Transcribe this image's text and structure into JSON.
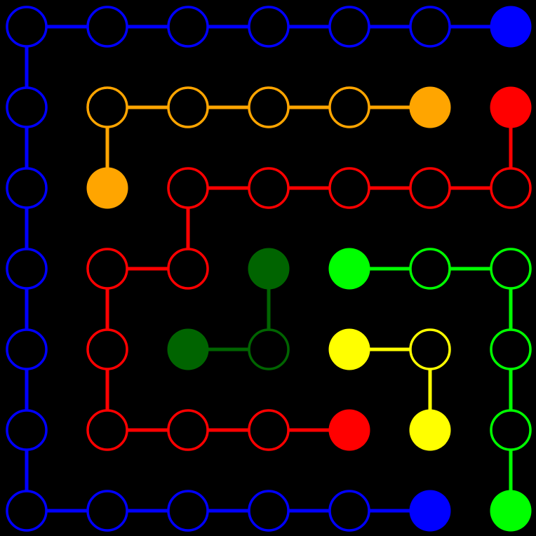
{
  "puzzle": {
    "grid_size": [
      7,
      7
    ],
    "colors": {
      "blue": "#0000ff",
      "orange": "#ffa500",
      "red": "#ff0000",
      "darkgreen": "#006400",
      "lime": "#00ff00",
      "yellow": "#ffff00"
    },
    "flows": [
      {
        "color": "blue",
        "path": [
          [
            6,
            0
          ],
          [
            5,
            0
          ],
          [
            4,
            0
          ],
          [
            3,
            0
          ],
          [
            2,
            0
          ],
          [
            1,
            0
          ],
          [
            0,
            0
          ],
          [
            0,
            1
          ],
          [
            0,
            2
          ],
          [
            0,
            3
          ],
          [
            0,
            4
          ],
          [
            0,
            5
          ],
          [
            0,
            6
          ],
          [
            1,
            6
          ],
          [
            2,
            6
          ],
          [
            3,
            6
          ],
          [
            4,
            6
          ],
          [
            5,
            6
          ]
        ]
      },
      {
        "color": "orange",
        "path": [
          [
            5,
            1
          ],
          [
            4,
            1
          ],
          [
            3,
            1
          ],
          [
            2,
            1
          ],
          [
            1,
            1
          ],
          [
            1,
            2
          ]
        ]
      },
      {
        "color": "red",
        "path": [
          [
            6,
            1
          ],
          [
            6,
            2
          ],
          [
            5,
            2
          ],
          [
            4,
            2
          ],
          [
            3,
            2
          ],
          [
            2,
            2
          ],
          [
            2,
            3
          ],
          [
            1,
            3
          ],
          [
            1,
            4
          ],
          [
            1,
            5
          ],
          [
            2,
            5
          ],
          [
            3,
            5
          ],
          [
            4,
            5
          ]
        ]
      },
      {
        "color": "darkgreen",
        "path": [
          [
            3,
            3
          ],
          [
            3,
            4
          ],
          [
            2,
            4
          ]
        ]
      },
      {
        "color": "lime",
        "path": [
          [
            4,
            3
          ],
          [
            5,
            3
          ],
          [
            6,
            3
          ],
          [
            6,
            4
          ],
          [
            6,
            5
          ],
          [
            6,
            6
          ]
        ]
      },
      {
        "color": "yellow",
        "path": [
          [
            4,
            4
          ],
          [
            5,
            4
          ],
          [
            5,
            5
          ]
        ]
      }
    ]
  }
}
